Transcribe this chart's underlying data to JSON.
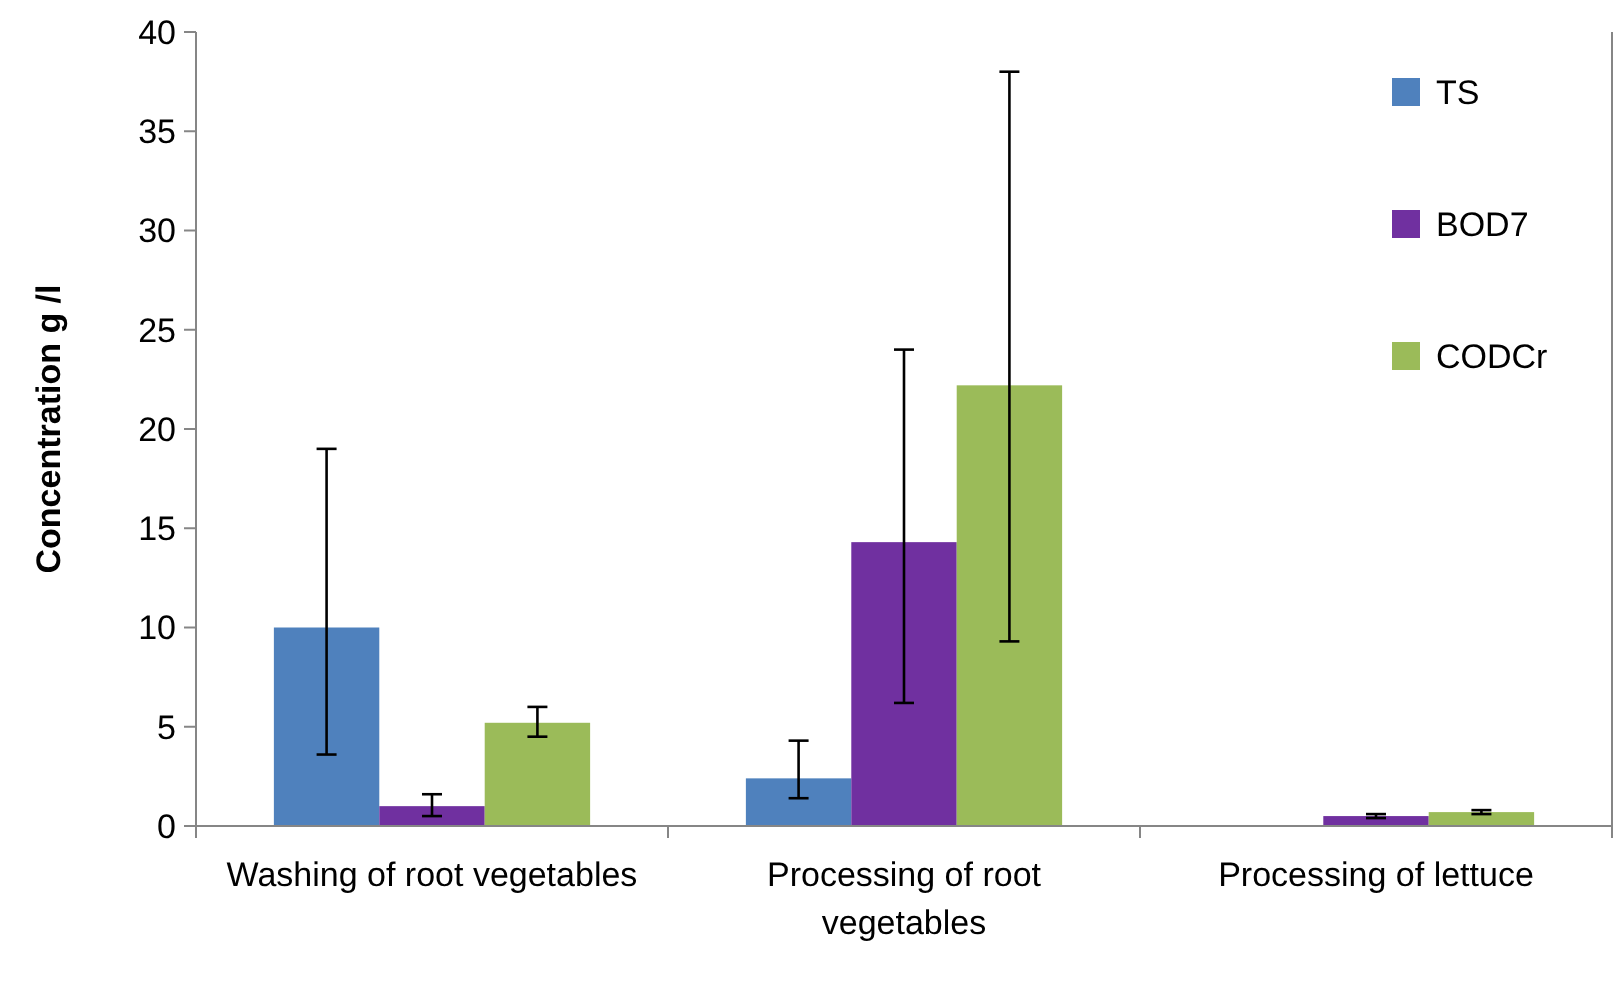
{
  "chart_data": {
    "type": "bar",
    "ylabel": "Concentration g /l",
    "categories": [
      "Washing of root vegetables",
      "Processing of root vegetables",
      "Processing of lettuce"
    ],
    "series": [
      {
        "name": "TS",
        "color": "#4f81bd",
        "values": [
          10,
          2.4,
          null
        ],
        "errors": [
          [
            3.6,
            19
          ],
          [
            1.4,
            4.3
          ],
          null
        ]
      },
      {
        "name": "BOD7",
        "color": "#7030a0",
        "values": [
          1.0,
          14.3,
          0.5
        ],
        "errors": [
          [
            0.5,
            1.6
          ],
          [
            6.2,
            24
          ],
          [
            0.4,
            0.6
          ]
        ]
      },
      {
        "name": "CODCr",
        "color": "#9bbb59",
        "values": [
          5.2,
          22.2,
          0.7
        ],
        "errors": [
          [
            4.5,
            6
          ],
          [
            9.3,
            38
          ],
          [
            0.6,
            0.8
          ]
        ]
      }
    ],
    "ylim": [
      0,
      40
    ],
    "yticks": [
      0,
      5,
      10,
      15,
      20,
      25,
      30,
      35,
      40
    ],
    "grid": false,
    "legend": "top right"
  }
}
